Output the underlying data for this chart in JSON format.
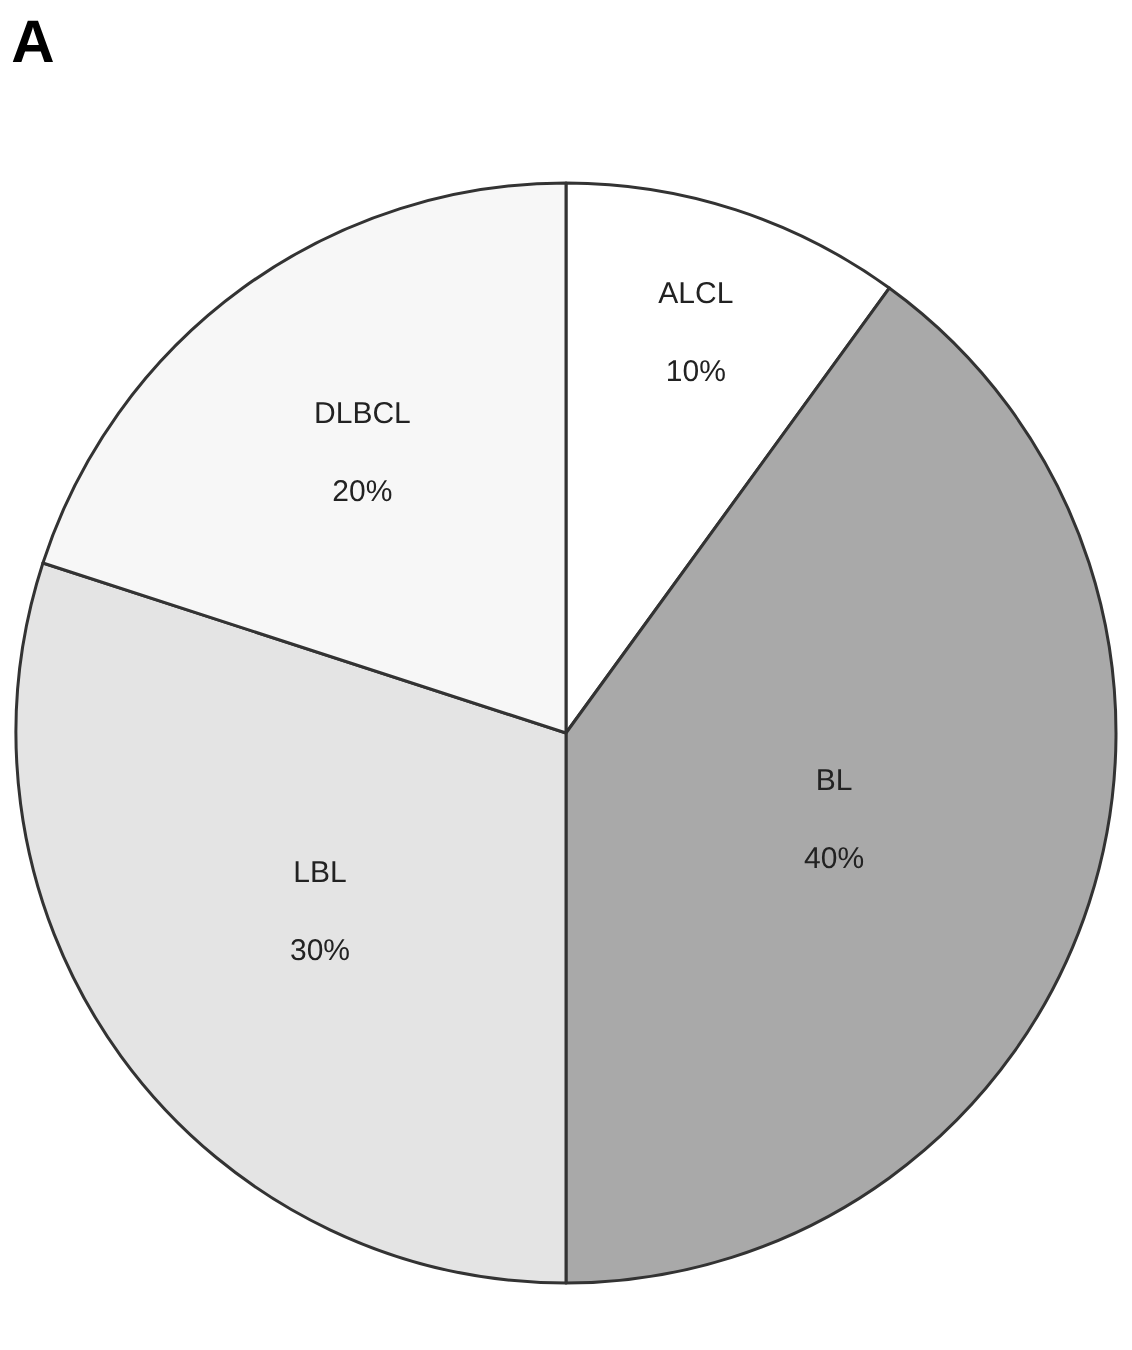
{
  "chart_data": {
    "type": "pie",
    "title": "A",
    "categories": [
      "ALCL",
      "BL",
      "LBL",
      "DLBCL"
    ],
    "values": [
      10,
      40,
      30,
      20
    ],
    "value_labels": [
      "10%",
      "40%",
      "30%",
      "20%"
    ],
    "colors": [
      "#ffffff",
      "#a9a9a9",
      "#e4e4e4",
      "#f7f7f7"
    ],
    "legend": false
  }
}
